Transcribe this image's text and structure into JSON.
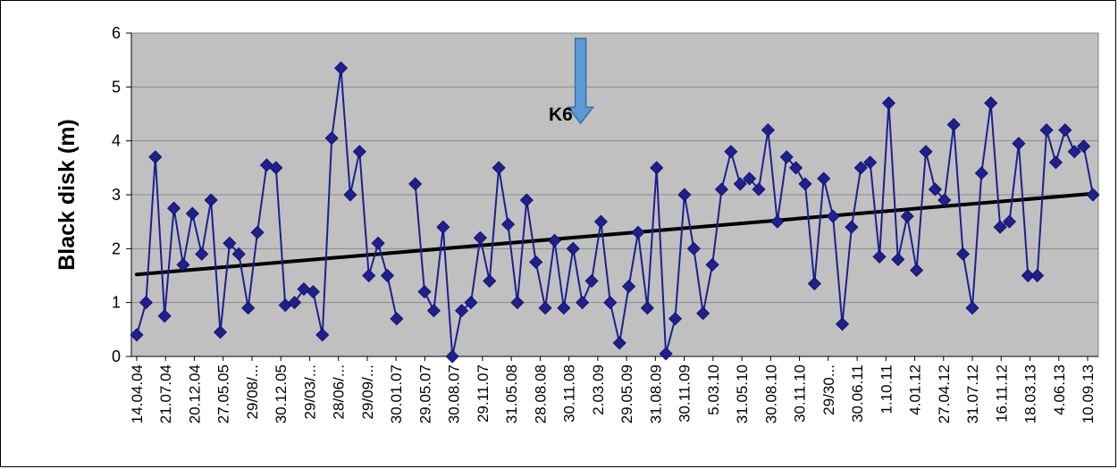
{
  "chart_data": {
    "type": "line",
    "title": "",
    "annotation": "K6",
    "ylabel": "Black disk (m)",
    "xlabel": "",
    "ylim": [
      0,
      6
    ],
    "yticks": [
      0,
      1,
      2,
      3,
      4,
      5,
      6
    ],
    "grid": "horizontal",
    "plot_background": "#c0c0c0",
    "colors": {
      "series": "#1f1f8f",
      "marker": "#1f1f8f",
      "trend": "#000000",
      "arrow_fill": "#5b9bd5",
      "arrow_stroke": "#3a6fa8"
    },
    "x_tick_labels": [
      "14.04.04",
      "21.07.04",
      "20.12.04",
      "27.05.05",
      "29/08/...",
      "30.12.05",
      "29/03/...",
      "28/06/...",
      "29/09/...",
      "30.01.07",
      "29.05.07",
      "30.08.07",
      "29.11.07",
      "31.05.08",
      "28.08.08",
      "30.11.08",
      "2.03.09",
      "29.05.09",
      "31.08.09",
      "30.11.09",
      "5.03.10",
      "31.05.10",
      "30.08.10",
      "30.11.10",
      "29/30...",
      "30.06.11",
      "1.10.11",
      "4.01.12",
      "27.04.12",
      "31.07.12",
      "16.11.12",
      "18.03.13",
      "4.06.13",
      "10.09.13"
    ],
    "arrow_marker": {
      "x_index": 48,
      "symbol": "down-arrow"
    },
    "series": [
      {
        "values": [
          0.4,
          1.0,
          3.7,
          0.75,
          2.75,
          1.7,
          2.65,
          1.9,
          2.9,
          0.45,
          2.1,
          1.9,
          0.9,
          2.3,
          3.55,
          3.5,
          0.95,
          1.0,
          1.25,
          1.2,
          0.4,
          4.05,
          5.35,
          3.0,
          3.8,
          1.5,
          2.1,
          1.5,
          0.7,
          null,
          3.2,
          1.2,
          0.85,
          2.4,
          0.0,
          0.85,
          1.0,
          2.2,
          1.4,
          3.5,
          2.45,
          1.0,
          2.9,
          1.75,
          0.9,
          2.15,
          0.9,
          2.0,
          1.0,
          1.4,
          2.5,
          1.0,
          0.25,
          1.3,
          2.3,
          0.9,
          3.5,
          0.05,
          0.7,
          3.0,
          2.0,
          0.8,
          1.7,
          3.1,
          3.8,
          3.2,
          3.3,
          3.1,
          4.2,
          2.5,
          3.7,
          3.5,
          3.2,
          1.35,
          3.3,
          2.6,
          0.6,
          2.4,
          3.5,
          3.6,
          1.85,
          4.7,
          1.8,
          2.6,
          1.6,
          3.8,
          3.1,
          2.9,
          4.3,
          1.9,
          0.9,
          3.4,
          4.7,
          2.4,
          2.5,
          3.95,
          1.5,
          1.5,
          4.2,
          3.6,
          4.2,
          3.8,
          3.9,
          3.0
        ]
      }
    ],
    "trendline": {
      "start": 1.52,
      "end": 3.02
    }
  }
}
